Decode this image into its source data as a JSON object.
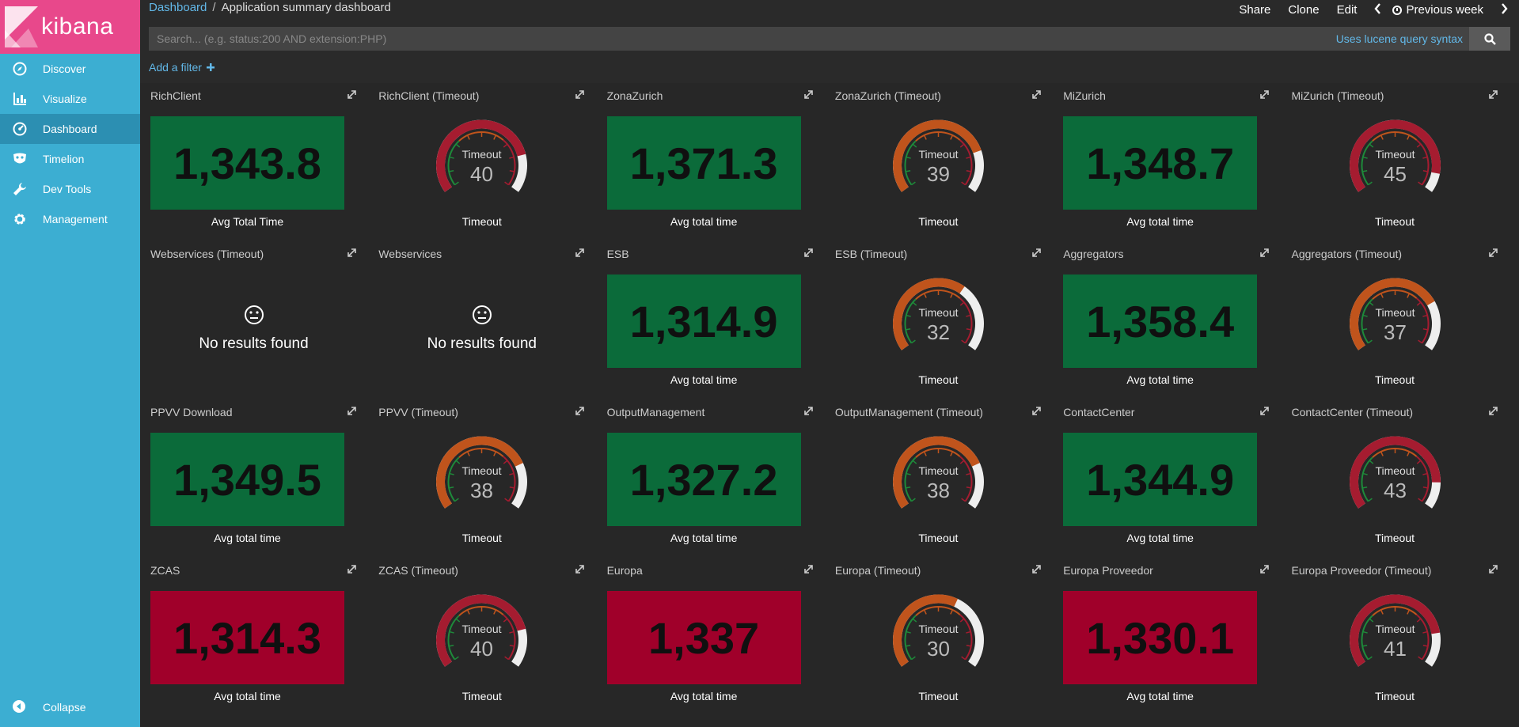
{
  "app": {
    "logo_text": "kibana",
    "colors": {
      "sidebar": "#3caed2",
      "logo_bg": "#e8488b",
      "green": "#0b6b3a",
      "red": "#a0002a",
      "link": "#62b8e8"
    }
  },
  "sidebar": {
    "items": [
      {
        "label": "Discover",
        "icon": "compass-icon"
      },
      {
        "label": "Visualize",
        "icon": "bar-chart-icon"
      },
      {
        "label": "Dashboard",
        "icon": "dashboard-icon"
      },
      {
        "label": "Timelion",
        "icon": "mask-icon"
      },
      {
        "label": "Dev Tools",
        "icon": "wrench-icon"
      },
      {
        "label": "Management",
        "icon": "gear-icon"
      }
    ],
    "collapse_label": "Collapse"
  },
  "header": {
    "breadcrumb_root": "Dashboard",
    "breadcrumb_sep": "/",
    "breadcrumb_current": "Application summary dashboard",
    "share": "Share",
    "clone": "Clone",
    "edit": "Edit",
    "time_range": "Previous week"
  },
  "search": {
    "placeholder": "Search... (e.g. status:200 AND extension:PHP)",
    "lucene_label": "Uses lucene query syntax"
  },
  "filters": {
    "add_label": "Add a filter"
  },
  "panels": [
    {
      "title": "RichClient",
      "type": "metric",
      "value": "1,343.8",
      "label": "Avg Total Time",
      "color": "green"
    },
    {
      "title": "RichClient (Timeout)",
      "type": "gauge",
      "value": 40,
      "gauge_title": "Timeout",
      "label": "Timeout"
    },
    {
      "title": "ZonaZurich",
      "type": "metric",
      "value": "1,371.3",
      "label": "Avg total time",
      "color": "green"
    },
    {
      "title": "ZonaZurich (Timeout)",
      "type": "gauge",
      "value": 39,
      "gauge_title": "Timeout",
      "label": "Timeout"
    },
    {
      "title": "MiZurich",
      "type": "metric",
      "value": "1,348.7",
      "label": "Avg total time",
      "color": "green"
    },
    {
      "title": "MiZurich (Timeout)",
      "type": "gauge",
      "value": 45,
      "gauge_title": "Timeout",
      "label": "Timeout"
    },
    {
      "title": "Webservices (Timeout)",
      "type": "empty",
      "message": "No results found"
    },
    {
      "title": "Webservices",
      "type": "empty",
      "message": "No results found"
    },
    {
      "title": "ESB",
      "type": "metric",
      "value": "1,314.9",
      "label": "Avg total time",
      "color": "green"
    },
    {
      "title": "ESB (Timeout)",
      "type": "gauge",
      "value": 32,
      "gauge_title": "Timeout",
      "label": "Timeout"
    },
    {
      "title": "Aggregators",
      "type": "metric",
      "value": "1,358.4",
      "label": "Avg total time",
      "color": "green"
    },
    {
      "title": "Aggregators (Timeout)",
      "type": "gauge",
      "value": 37,
      "gauge_title": "Timeout",
      "label": "Timeout"
    },
    {
      "title": "PPVV Download",
      "type": "metric",
      "value": "1,349.5",
      "label": "Avg total time",
      "color": "green"
    },
    {
      "title": "PPVV (Timeout)",
      "type": "gauge",
      "value": 38,
      "gauge_title": "Timeout",
      "label": "Timeout"
    },
    {
      "title": "OutputManagement",
      "type": "metric",
      "value": "1,327.2",
      "label": "Avg total time",
      "color": "green"
    },
    {
      "title": "OutputManagement (Timeout)",
      "type": "gauge",
      "value": 38,
      "gauge_title": "Timeout",
      "label": "Timeout"
    },
    {
      "title": "ContactCenter",
      "type": "metric",
      "value": "1,344.9",
      "label": "Avg total time",
      "color": "green"
    },
    {
      "title": "ContactCenter (Timeout)",
      "type": "gauge",
      "value": 43,
      "gauge_title": "Timeout",
      "label": "Timeout"
    },
    {
      "title": "ZCAS",
      "type": "metric",
      "value": "1,314.3",
      "label": "Avg total time",
      "color": "red"
    },
    {
      "title": "ZCAS (Timeout)",
      "type": "gauge",
      "value": 40,
      "gauge_title": "Timeout",
      "label": "Timeout"
    },
    {
      "title": "Europa",
      "type": "metric",
      "value": "1,337",
      "label": "Avg total time",
      "color": "red"
    },
    {
      "title": "Europa (Timeout)",
      "type": "gauge",
      "value": 30,
      "gauge_title": "Timeout",
      "label": "Timeout"
    },
    {
      "title": "Europa Proveedor",
      "type": "metric",
      "value": "1,330.1",
      "label": "Avg total time",
      "color": "red"
    },
    {
      "title": "Europa Proveedor (Timeout)",
      "type": "gauge",
      "value": 41,
      "gauge_title": "Timeout",
      "label": "Timeout"
    }
  ]
}
